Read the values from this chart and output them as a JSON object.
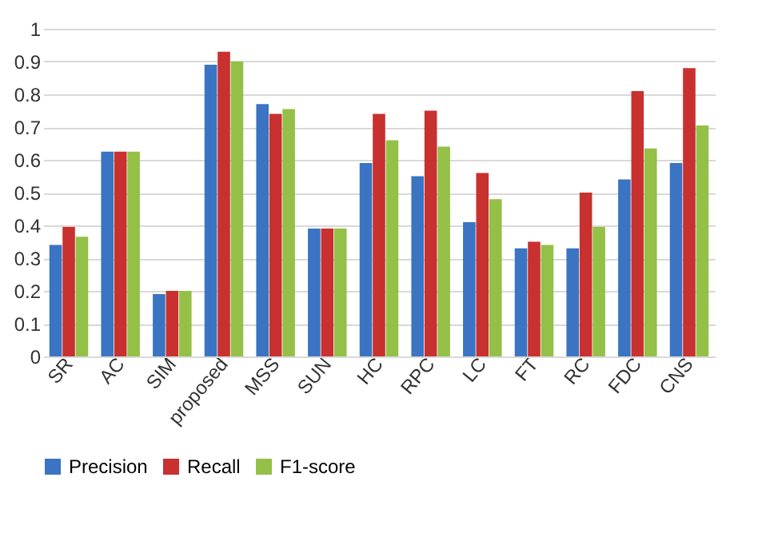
{
  "chart_data": {
    "type": "bar",
    "categories": [
      "SR",
      "AC",
      "SIM",
      "proposed",
      "MSS",
      "SUN",
      "HC",
      "RPC",
      "LC",
      "FT",
      "RC",
      "FDC",
      "CNS"
    ],
    "series": [
      {
        "name": "Precision",
        "color": "#3b74c2",
        "values": [
          0.34,
          0.625,
          0.19,
          0.89,
          0.77,
          0.39,
          0.59,
          0.55,
          0.41,
          0.33,
          0.33,
          0.54,
          0.59
        ]
      },
      {
        "name": "Recall",
        "color": "#c8312f",
        "values": [
          0.395,
          0.625,
          0.2,
          0.93,
          0.74,
          0.39,
          0.74,
          0.75,
          0.56,
          0.35,
          0.5,
          0.81,
          0.88
        ]
      },
      {
        "name": "F1-score",
        "color": "#94c047",
        "values": [
          0.365,
          0.625,
          0.2,
          0.9,
          0.755,
          0.39,
          0.66,
          0.64,
          0.48,
          0.34,
          0.395,
          0.635,
          0.705
        ]
      }
    ],
    "ylim": [
      0,
      1
    ],
    "yticks": [
      0,
      0.1,
      0.2,
      0.3,
      0.4,
      0.5,
      0.6,
      0.7,
      0.8,
      0.9,
      1
    ],
    "grid": "y",
    "legend": "bottom"
  }
}
